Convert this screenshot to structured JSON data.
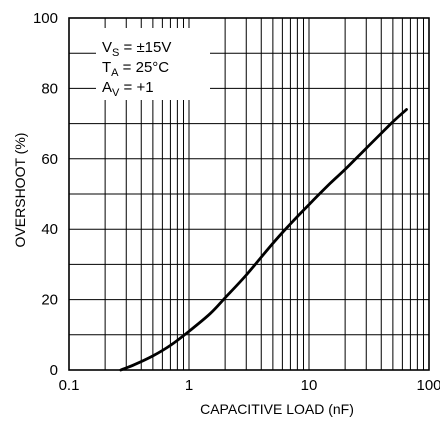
{
  "chart_data": {
    "type": "line",
    "title": "",
    "xlabel": "CAPACITIVE LOAD (nF)",
    "ylabel": "OVERSHOOT (%)",
    "xscale": "log",
    "xlim": [
      0.1,
      100
    ],
    "ylim": [
      0,
      100
    ],
    "grid": true,
    "legend": "none",
    "x_ticks": [
      {
        "value": 0.1,
        "label": "0.1"
      },
      {
        "value": 1,
        "label": "1"
      },
      {
        "value": 10,
        "label": "10"
      },
      {
        "value": 100,
        "label": "100"
      }
    ],
    "y_ticks": [
      {
        "value": 0,
        "label": "0"
      },
      {
        "value": 20,
        "label": "20"
      },
      {
        "value": 40,
        "label": "40"
      },
      {
        "value": 60,
        "label": "60"
      },
      {
        "value": 80,
        "label": "80"
      },
      {
        "value": 100,
        "label": "100"
      }
    ],
    "annotations": [
      {
        "main": "V",
        "sub": "S",
        "rest": " = ±15V"
      },
      {
        "main": "T",
        "sub": "A",
        "rest": " = 25°C"
      },
      {
        "main": "A",
        "sub": "V",
        "rest": " = +1"
      }
    ],
    "series": [
      {
        "color": "#000000",
        "x": [
          0.27,
          0.35,
          0.5,
          0.7,
          1,
          1.5,
          2,
          3,
          5,
          7,
          10,
          15,
          20,
          30,
          50,
          65
        ],
        "y": [
          0,
          1.5,
          4,
          7,
          11,
          16,
          20.5,
          27,
          36,
          41.5,
          47,
          53,
          57,
          63,
          70.5,
          74
        ]
      }
    ]
  }
}
